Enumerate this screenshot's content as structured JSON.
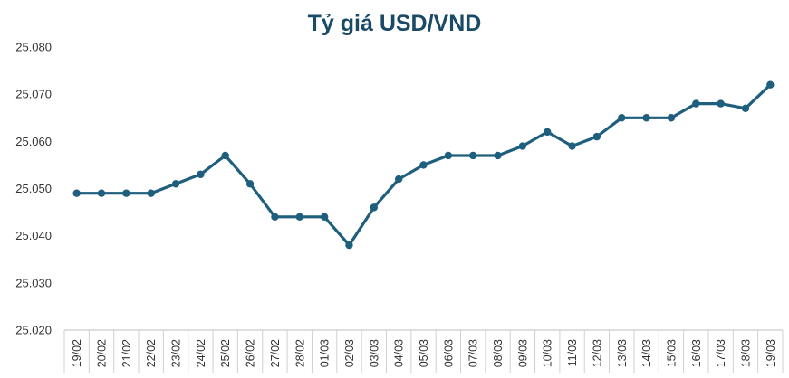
{
  "chart_data": {
    "type": "line",
    "title": "Tỷ giá USD/VND",
    "xlabel": "",
    "ylabel": "",
    "categories": [
      "19/02",
      "20/02",
      "21/02",
      "22/02",
      "23/02",
      "24/02",
      "25/02",
      "26/02",
      "27/02",
      "28/02",
      "01/03",
      "02/03",
      "03/03",
      "04/03",
      "05/03",
      "06/03",
      "07/03",
      "08/03",
      "09/03",
      "10/03",
      "11/03",
      "12/03",
      "13/03",
      "14/03",
      "15/03",
      "16/03",
      "17/03",
      "18/03",
      "19/03"
    ],
    "series": [
      {
        "values": [
          25049,
          25049,
          25049,
          25049,
          25051,
          25053,
          25057,
          25051,
          25044,
          25044,
          25044,
          25038,
          25046,
          25052,
          25055,
          25057,
          25057,
          25057,
          25059,
          25062,
          25059,
          25061,
          25065,
          25065,
          25065,
          25068,
          25068,
          25067,
          25072
        ]
      }
    ],
    "ylim": [
      25020,
      25080
    ],
    "yticks": [
      "25.020",
      "25.030",
      "25.040",
      "25.050",
      "25.060",
      "25.070",
      "25.080"
    ],
    "grid": false,
    "legend": "none",
    "line_color": "#1f5f7e",
    "title_color": "#1b4a66"
  }
}
